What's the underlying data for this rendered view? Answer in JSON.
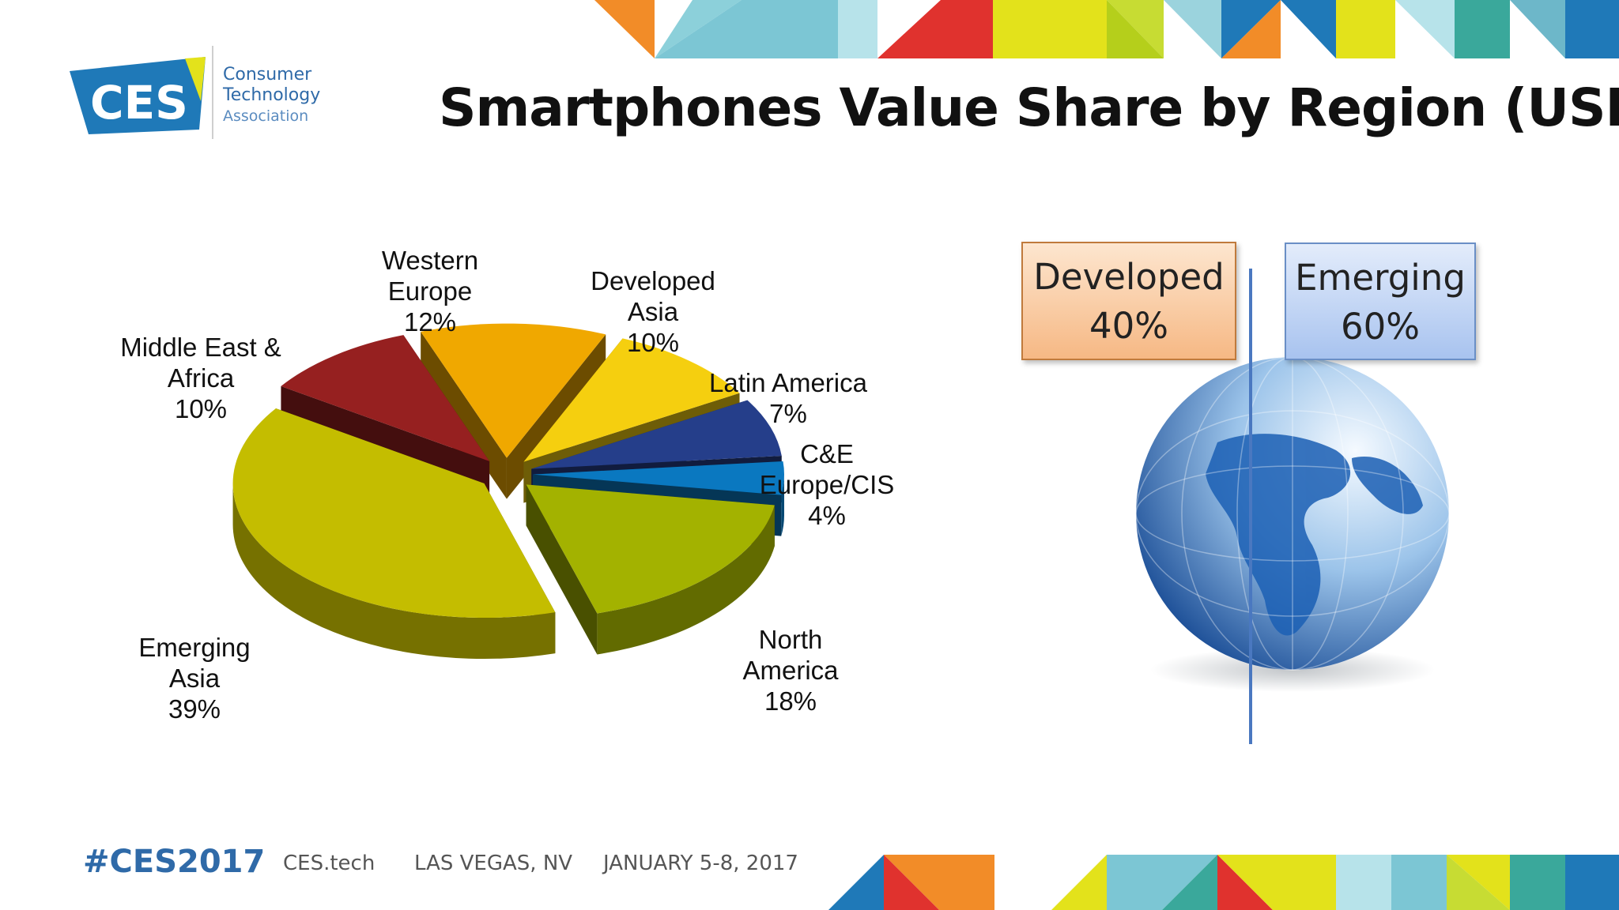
{
  "header": {
    "logo_mark": "CES",
    "logo_lines": [
      "Consumer",
      "Technology",
      "Association"
    ],
    "title": "Smartphones Value Share by Region (USD)"
  },
  "chart_data": {
    "type": "pie",
    "title": "Smartphones Value Share by Region (USD)",
    "unit": "%",
    "slices": [
      {
        "label_lines": [
          "Western",
          "Europe",
          "12%"
        ],
        "name": "Western Europe",
        "value": 12,
        "color": "#f0a800"
      },
      {
        "label_lines": [
          "Developed",
          "Asia",
          "10%"
        ],
        "name": "Developed Asia",
        "value": 10,
        "color": "#f5cf0f"
      },
      {
        "label_lines": [
          "Latin America",
          "7%"
        ],
        "name": "Latin America",
        "value": 7,
        "color": "#253e8a"
      },
      {
        "label_lines": [
          "C&E",
          "Europe/CIS",
          "4%"
        ],
        "name": "C&E Europe/CIS",
        "value": 4,
        "color": "#0a78c0"
      },
      {
        "label_lines": [
          "North",
          "America",
          "18%"
        ],
        "name": "North America",
        "value": 18,
        "color": "#a3b200"
      },
      {
        "label_lines": [
          "Emerging",
          "Asia",
          "39%"
        ],
        "name": "Emerging Asia",
        "value": 39,
        "color": "#c4bd00"
      },
      {
        "label_lines": [
          "Middle East &",
          "Africa",
          "10%"
        ],
        "name": "Middle East & Africa",
        "value": 10,
        "color": "#962020"
      }
    ],
    "summary": [
      {
        "name": "Developed",
        "value": 40,
        "text": "40%"
      },
      {
        "name": "Emerging",
        "value": 60,
        "text": "60%"
      }
    ]
  },
  "footer": {
    "hashtag": "#CES2017",
    "site": "CES.tech",
    "location": "LAS VEGAS, NV",
    "dates": "JANUARY 5-8, 2017"
  },
  "colors": {
    "brand_blue": "#2f6aa8",
    "deco": [
      "#f28c28",
      "#7cc6d4",
      "#e3e21b",
      "#e0322e",
      "#1f79b8",
      "#3aa89b"
    ]
  }
}
